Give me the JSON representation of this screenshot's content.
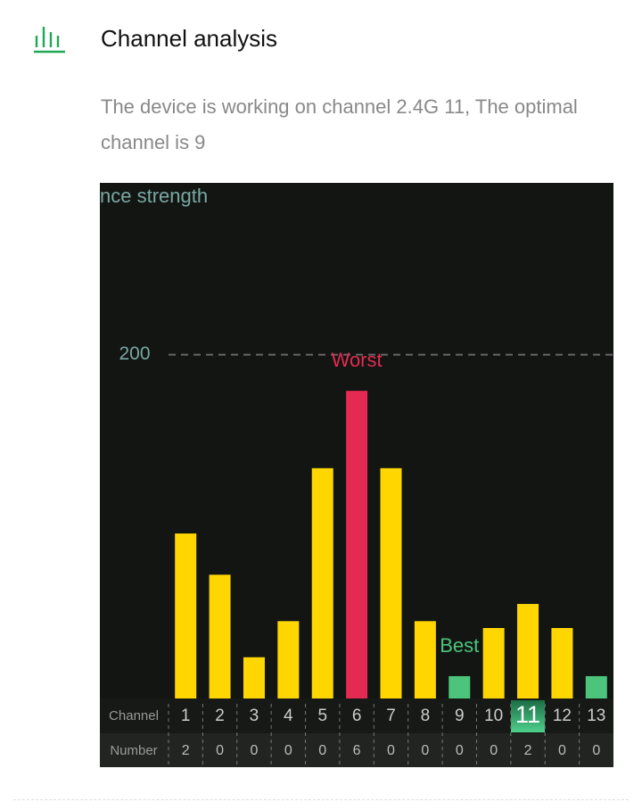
{
  "header": {
    "title": "Channel analysis",
    "description": "The device is working on channel 2.4G 11, The optimal channel is 9"
  },
  "chart_data": {
    "type": "bar",
    "y_label": "nce strength",
    "categories": [
      "1",
      "2",
      "3",
      "4",
      "5",
      "6",
      "7",
      "8",
      "9",
      "10",
      "11",
      "12",
      "13"
    ],
    "values": [
      96,
      72,
      24,
      45,
      134,
      179,
      134,
      45,
      13,
      41,
      55,
      41,
      13
    ],
    "colors": [
      "#ffd600",
      "#ffd600",
      "#ffd600",
      "#ffd600",
      "#ffd600",
      "#e32a52",
      "#ffd600",
      "#ffd600",
      "#4cc47c",
      "#ffd600",
      "#ffd600",
      "#ffd600",
      "#4cc47c"
    ],
    "ylim": [
      0,
      300
    ],
    "yticks": [
      200
    ],
    "grid": true,
    "row_labels": [
      "Channel",
      "Number"
    ],
    "numbers": [
      2,
      0,
      0,
      0,
      0,
      6,
      0,
      0,
      0,
      0,
      2,
      0,
      0
    ],
    "current": "11",
    "annotations": [
      {
        "text": "Worst",
        "channel": "6",
        "color": "#e32a52"
      },
      {
        "text": "Best",
        "channel": "9",
        "color": "#4cc47c"
      }
    ]
  }
}
